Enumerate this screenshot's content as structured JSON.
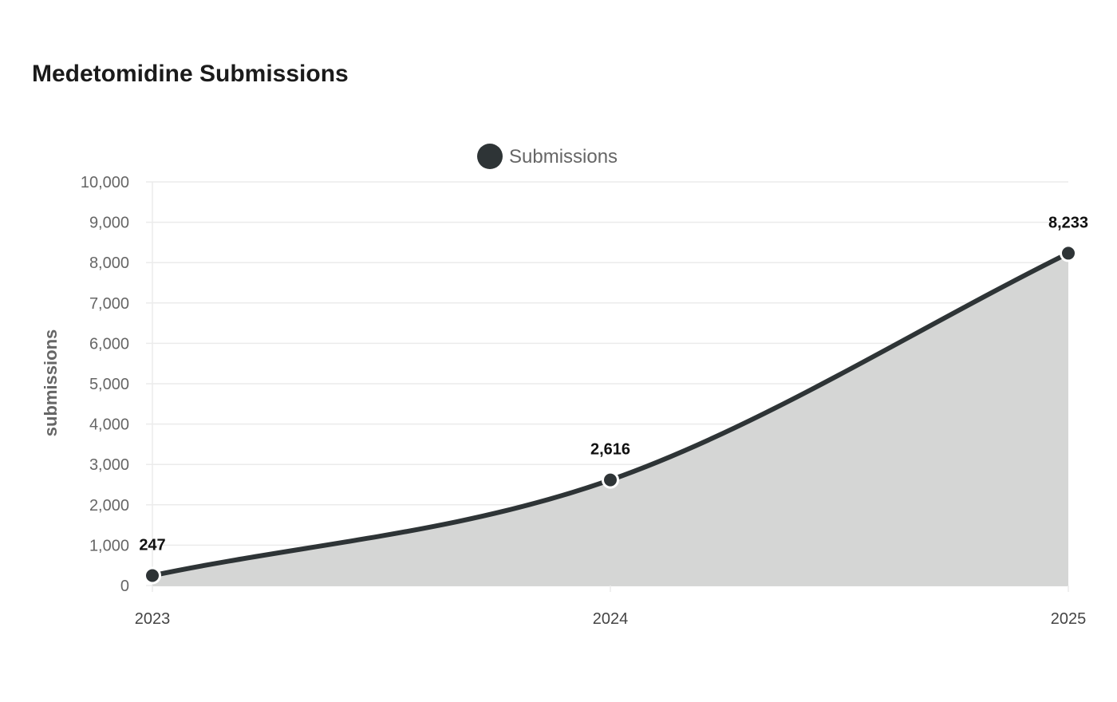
{
  "chart_data": {
    "type": "area",
    "title": "Medetomidine Submissions",
    "xlabel": "",
    "ylabel": "submissions",
    "categories": [
      "2023",
      "2024",
      "2025"
    ],
    "series": [
      {
        "name": "Submissions",
        "values": [
          247,
          2616,
          8233
        ],
        "value_labels": [
          "247",
          "2,616",
          "8,233"
        ]
      }
    ],
    "ylim": [
      0,
      10000
    ],
    "yticks": [
      0,
      1000,
      2000,
      3000,
      4000,
      5000,
      6000,
      7000,
      8000,
      9000,
      10000
    ],
    "ytick_labels": [
      "0",
      "1,000",
      "2,000",
      "3,000",
      "4,000",
      "5,000",
      "6,000",
      "7,000",
      "8,000",
      "9,000",
      "10,000"
    ],
    "grid": true,
    "legend_position": "top-center",
    "colors": {
      "line": "#2e3436",
      "area": "#d5d6d5",
      "grid": "#ebebeb",
      "axis": "#cccccc"
    }
  }
}
